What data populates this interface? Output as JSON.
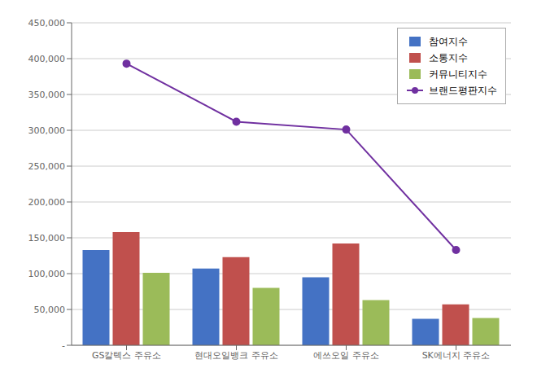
{
  "chart_data": {
    "type": "bar",
    "categories": [
      "GS칼텍스 주유소",
      "현대오일뱅크 주유소",
      "에쓰오일 주유소",
      "SK에너지 주유소"
    ],
    "series": [
      {
        "name": "참여지수",
        "type": "bar",
        "color": "#4472C4",
        "values": [
          133000,
          107000,
          95000,
          37000
        ]
      },
      {
        "name": "소통지수",
        "type": "bar",
        "color": "#C0504D",
        "values": [
          158000,
          123000,
          142000,
          57000
        ]
      },
      {
        "name": "커뮤니티지수",
        "type": "bar",
        "color": "#9BBB59",
        "values": [
          101000,
          80000,
          63000,
          38000
        ]
      },
      {
        "name": "브랜드평판지수",
        "type": "line",
        "color": "#7030A0",
        "marker": "circle",
        "values": [
          393000,
          312000,
          301000,
          133000
        ]
      }
    ],
    "ylim": [
      0,
      450000
    ],
    "yticks": [
      {
        "value": 0,
        "label": "-"
      },
      {
        "value": 50000,
        "label": "50,000"
      },
      {
        "value": 100000,
        "label": "100,000"
      },
      {
        "value": 150000,
        "label": "150,000"
      },
      {
        "value": 200000,
        "label": "200,000"
      },
      {
        "value": 250000,
        "label": "250,000"
      },
      {
        "value": 300000,
        "label": "300,000"
      },
      {
        "value": 350000,
        "label": "350,000"
      },
      {
        "value": 400000,
        "label": "400,000"
      },
      {
        "value": 450000,
        "label": "450,000"
      }
    ],
    "grid": true,
    "legend": "upper right"
  }
}
